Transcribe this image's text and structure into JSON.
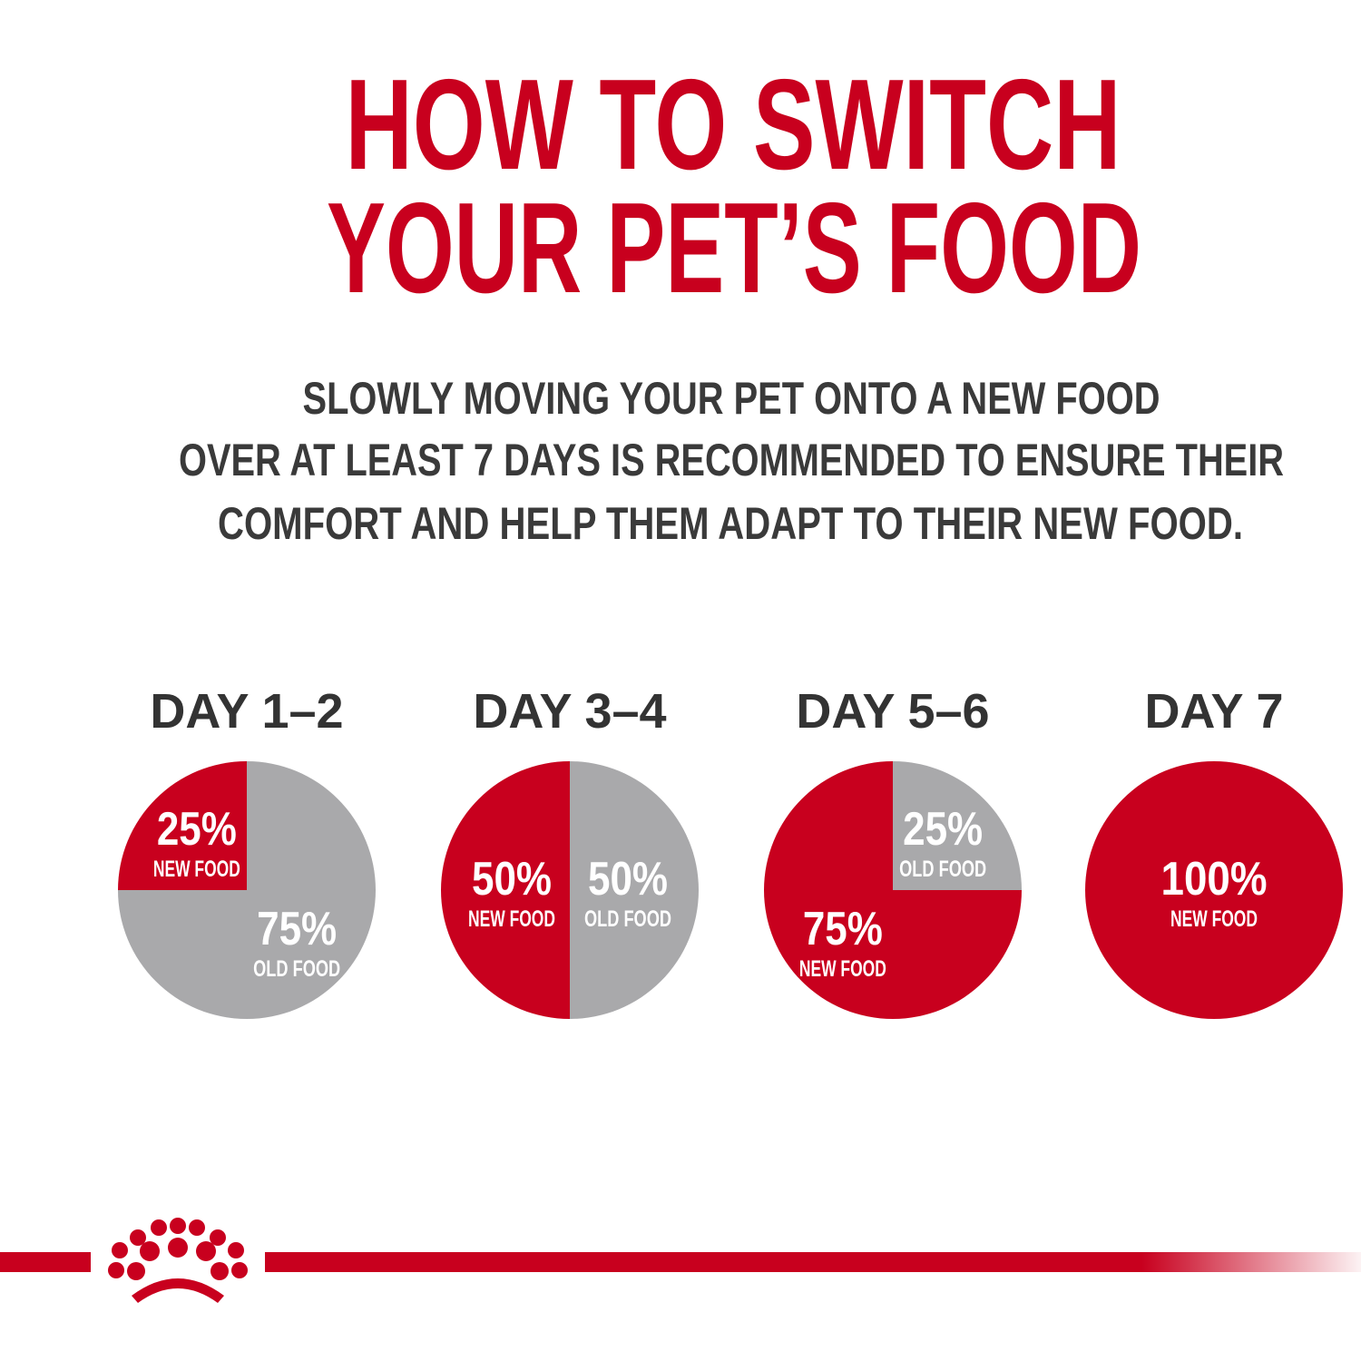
{
  "title": [
    "HOW TO SWITCH",
    "YOUR PET’S FOOD"
  ],
  "subtitle": [
    "SLOWLY MOVING YOUR PET ONTO A NEW FOOD",
    "OVER AT LEAST 7 DAYS IS RECOMMENDED TO ENSURE THEIR",
    "COMFORT AND HELP THEM ADAPT TO THEIR NEW FOOD."
  ],
  "chart_data": [
    {
      "type": "pie",
      "title": "DAY 1–2",
      "categories": [
        "NEW FOOD",
        "OLD FOOD"
      ],
      "values": [
        25,
        75
      ],
      "value_labels": [
        "25%",
        "75%"
      ],
      "colors": [
        "#c8001e",
        "#a9a9ab"
      ]
    },
    {
      "type": "pie",
      "title": "DAY 3–4",
      "categories": [
        "NEW FOOD",
        "OLD FOOD"
      ],
      "values": [
        50,
        50
      ],
      "value_labels": [
        "50%",
        "50%"
      ],
      "colors": [
        "#c8001e",
        "#a9a9ab"
      ]
    },
    {
      "type": "pie",
      "title": "DAY 5–6",
      "categories": [
        "NEW FOOD",
        "OLD FOOD"
      ],
      "values": [
        75,
        25
      ],
      "value_labels": [
        "75%",
        "25%"
      ],
      "colors": [
        "#c8001e",
        "#a9a9ab"
      ]
    },
    {
      "type": "pie",
      "title": "DAY 7",
      "categories": [
        "NEW FOOD"
      ],
      "values": [
        100
      ],
      "value_labels": [
        "100%"
      ],
      "colors": [
        "#c8001e"
      ]
    }
  ]
}
